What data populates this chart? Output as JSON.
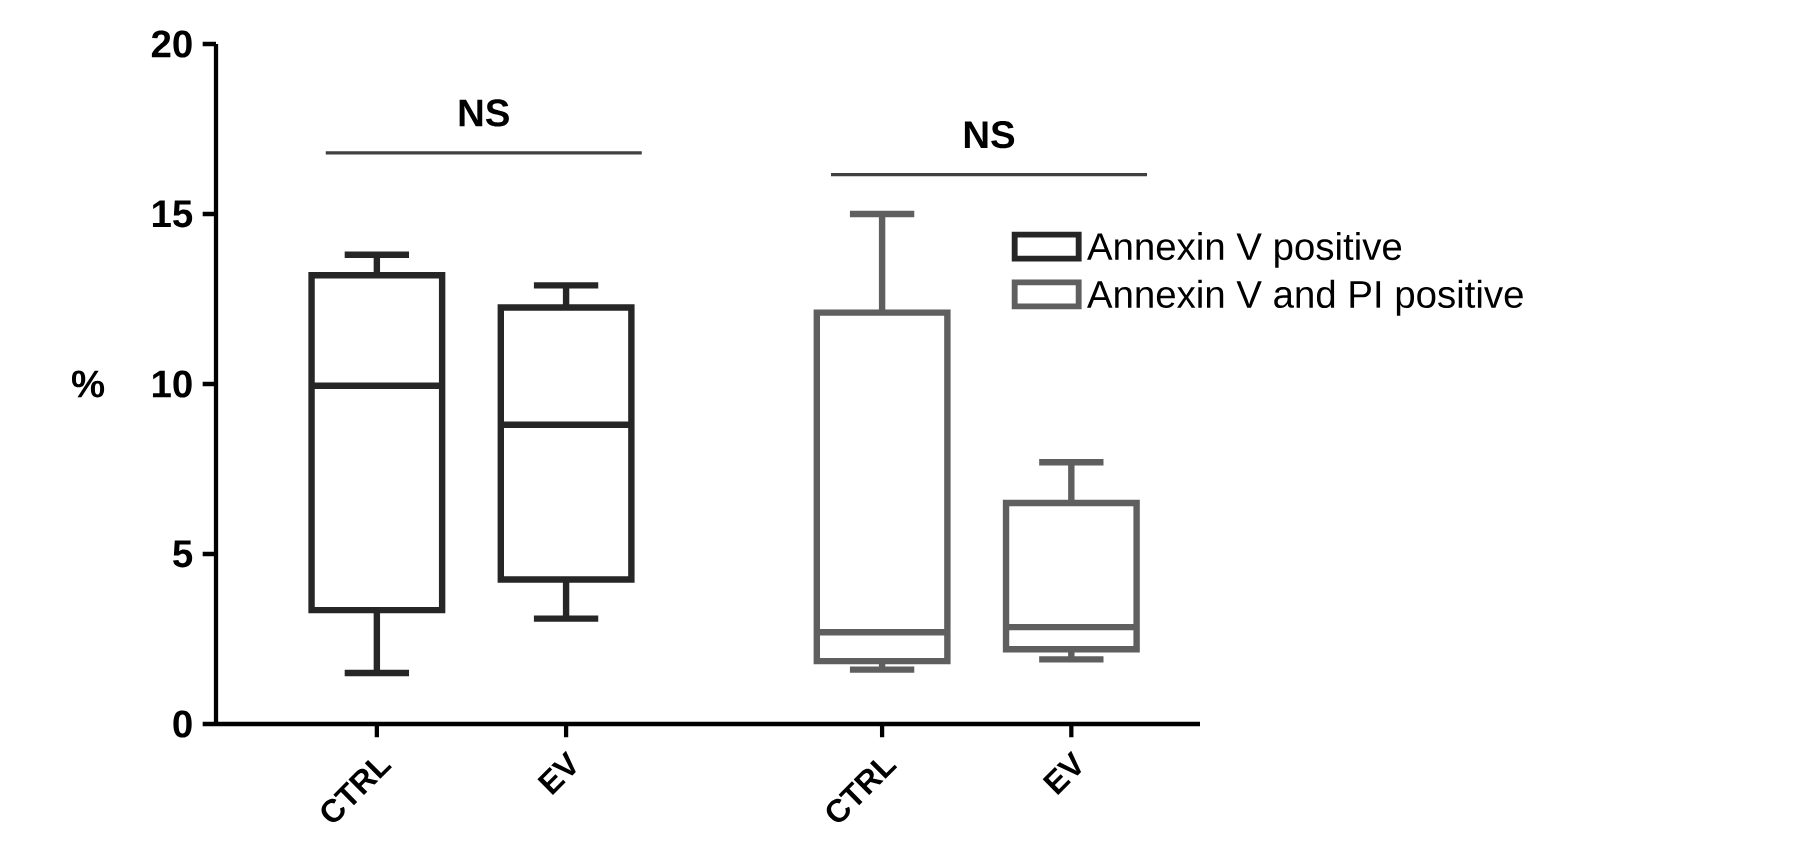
{
  "chart_data": {
    "type": "box",
    "ylabel": "%",
    "categories": [
      "CTRL",
      "EV",
      "CTRL",
      "EV"
    ],
    "series": [
      {
        "name": "Annexin V  positive",
        "color": "#262626",
        "boxes": [
          {
            "low": 1.5,
            "q1": 3.35,
            "median": 9.95,
            "q3": 13.2,
            "high": 13.8
          },
          {
            "low": 3.1,
            "q1": 4.25,
            "median": 8.8,
            "q3": 12.25,
            "high": 12.9
          },
          null,
          null
        ]
      },
      {
        "name": "Annexin V and PI positive",
        "color": "#5f5f5f",
        "boxes": [
          null,
          null,
          {
            "low": 1.6,
            "q1": 1.85,
            "median": 2.7,
            "q3": 12.1,
            "high": 15.0
          },
          {
            "low": 1.9,
            "q1": 2.2,
            "median": 2.85,
            "q3": 6.5,
            "high": 7.7
          }
        ]
      }
    ],
    "ylim": [
      0,
      20
    ],
    "yticks": [
      0,
      5,
      10,
      15,
      20
    ],
    "annotations": [
      "NS",
      "NS"
    ],
    "legend": "right"
  }
}
